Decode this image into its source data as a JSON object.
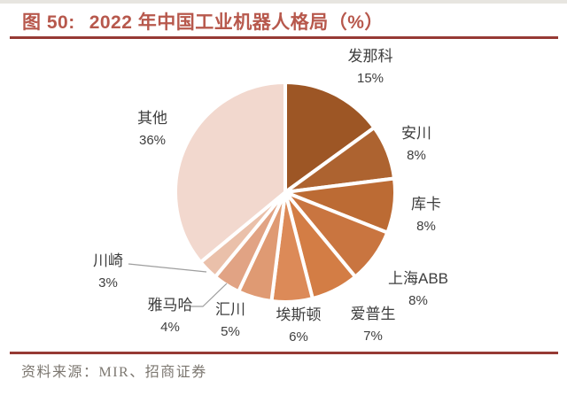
{
  "figure": {
    "caption_label": "图 50:",
    "caption_title": "2022 年中国工业机器人格局（%）"
  },
  "chart_data": {
    "type": "pie",
    "title": "2022 年中国工业机器人格局（%）",
    "categories": [
      "发那科",
      "安川",
      "库卡",
      "上海ABB",
      "爱普生",
      "埃斯顿",
      "汇川",
      "雅马哈",
      "川崎",
      "其他"
    ],
    "values": [
      15,
      8,
      8,
      8,
      7,
      6,
      5,
      4,
      3,
      36
    ],
    "unit": "%",
    "colors": [
      "#9D5625",
      "#AD6330",
      "#BC6B34",
      "#C97540",
      "#D37D45",
      "#DC8A58",
      "#DF9A73",
      "#E1A384",
      "#EAC0AA",
      "#F2D8CE"
    ],
    "start_angle_deg": 0,
    "direction": "clockwise",
    "slice_border_color": "#FFFFFF",
    "label_position": "outside",
    "legend": "none"
  },
  "source": {
    "text": "资料来源：MIR、招商证券"
  },
  "theme": {
    "background": "#FFFFFF",
    "title_color": "#B7584C",
    "rule_color": "#963A34",
    "label_text_color": "#3E3E3E",
    "leader_line_color": "#9E9E9E",
    "source_text_color": "#7C7770"
  }
}
